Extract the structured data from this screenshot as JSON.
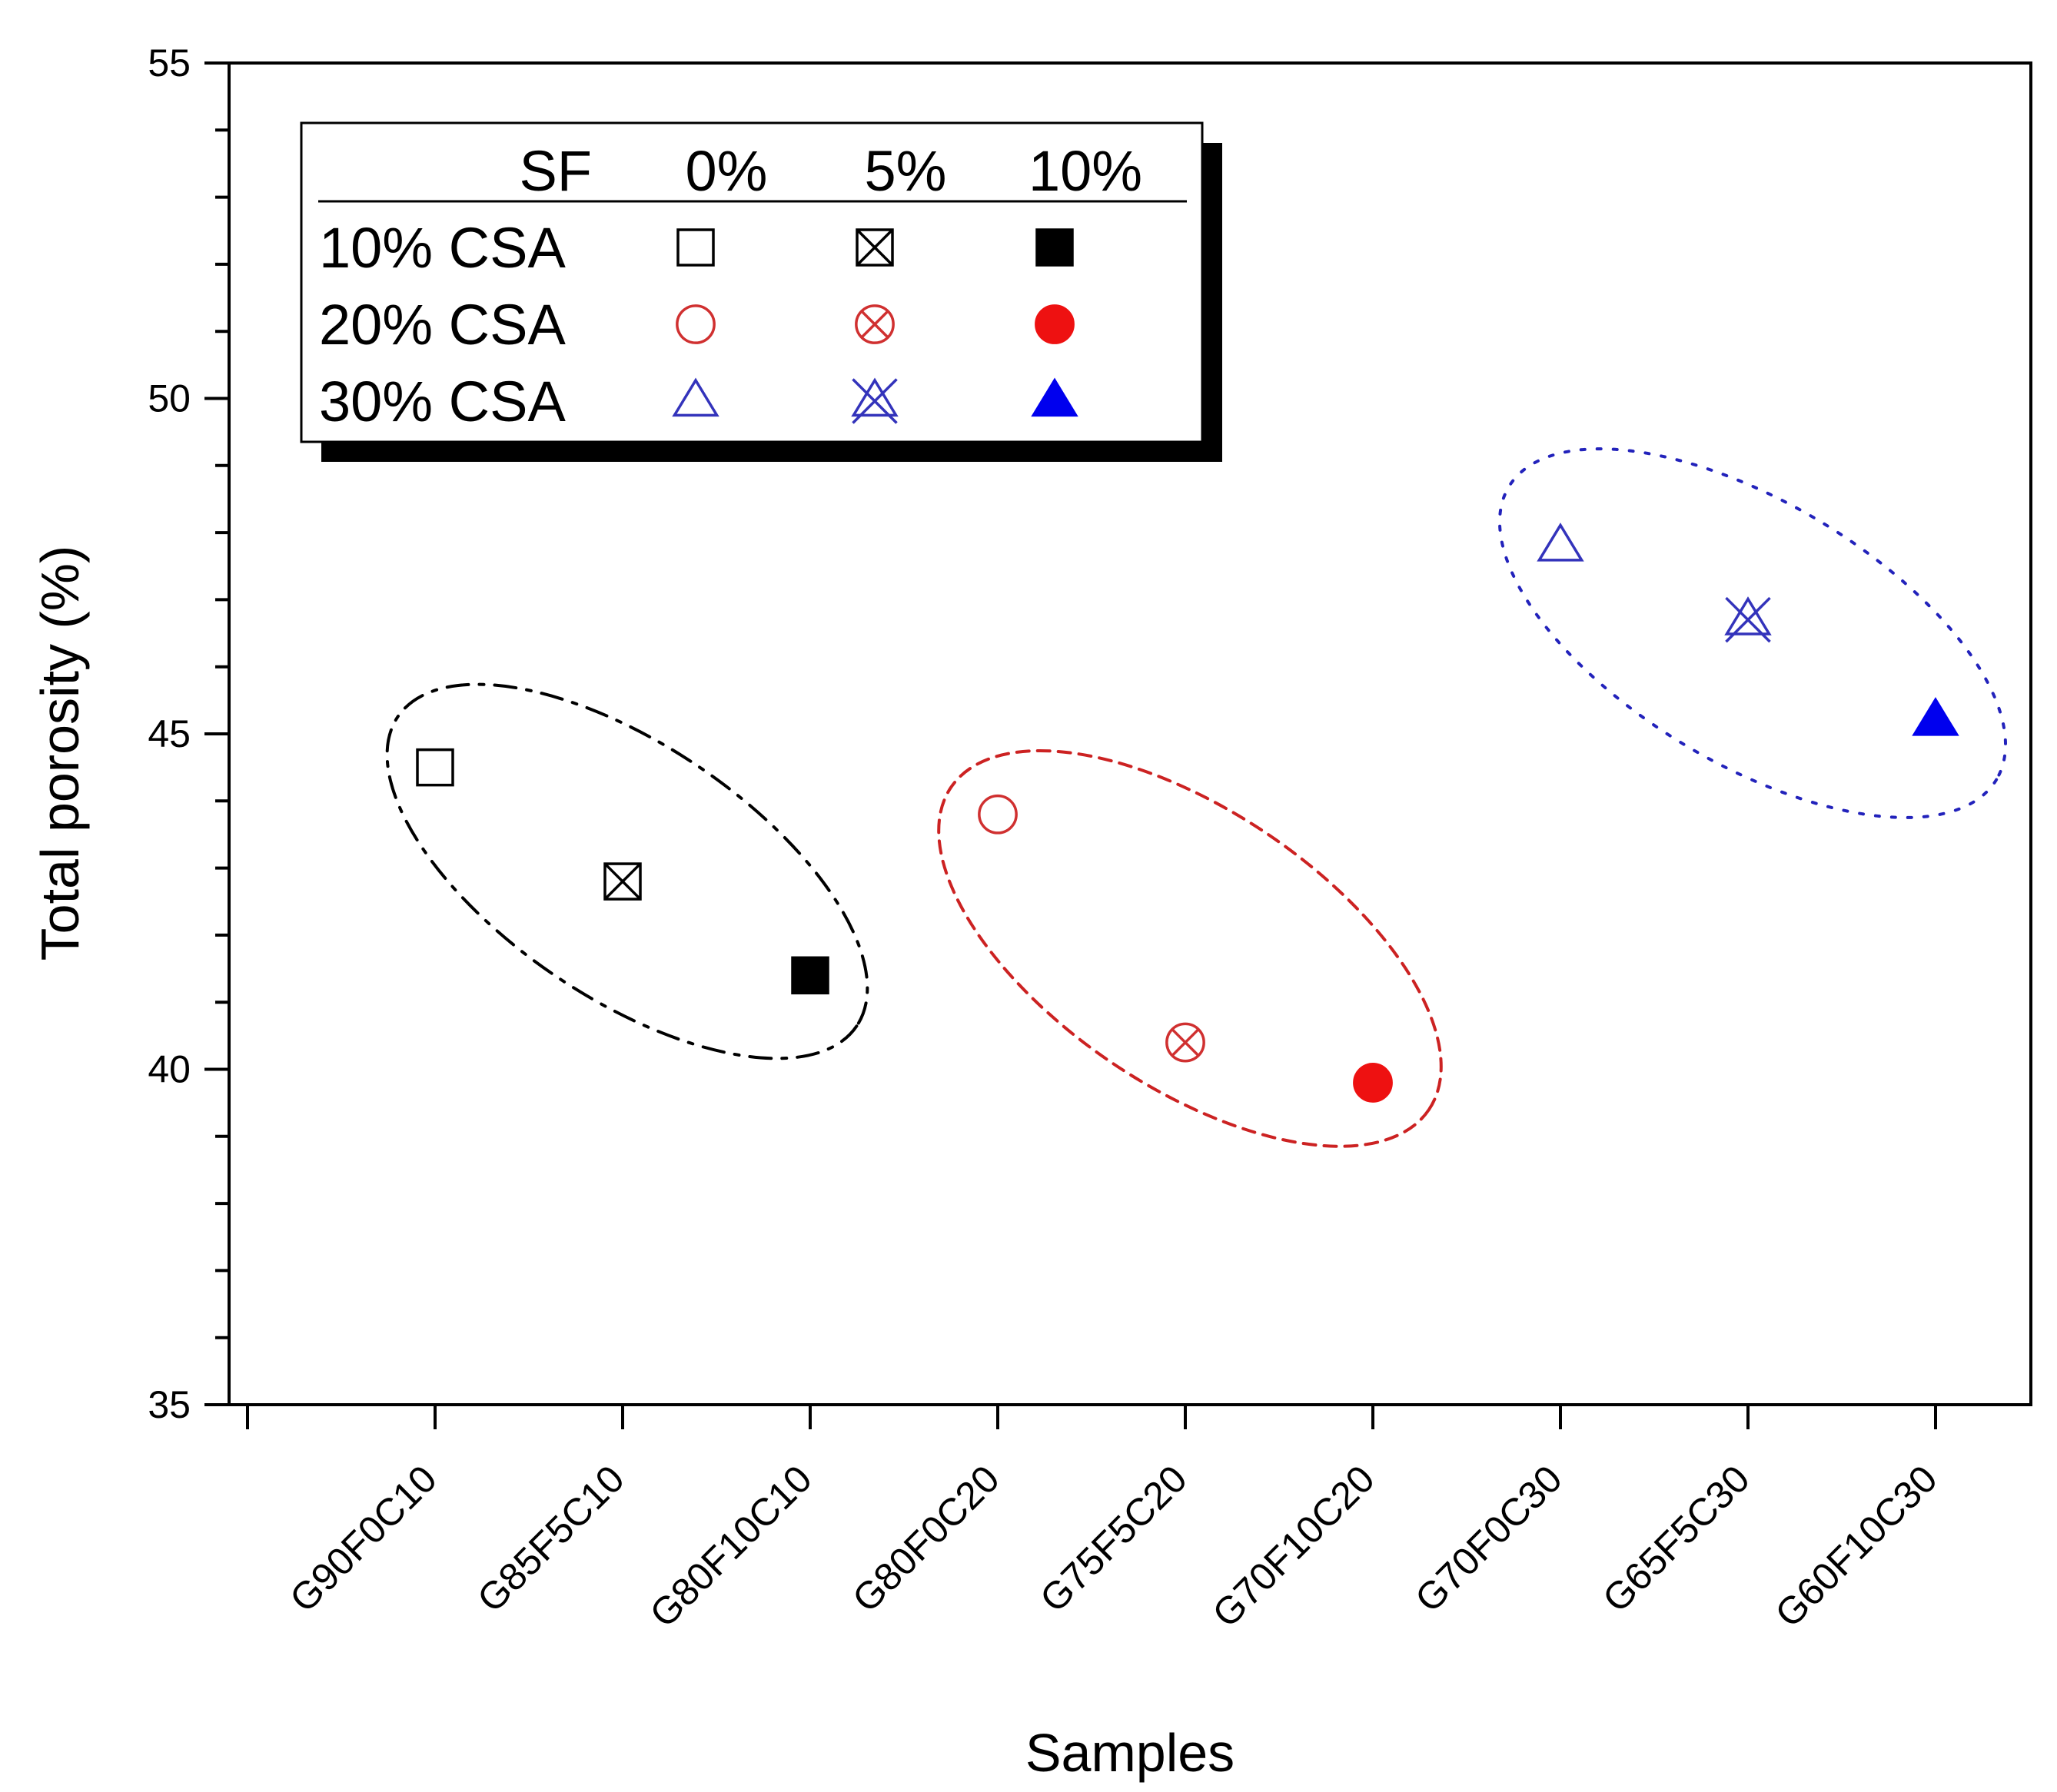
{
  "chart_data": {
    "type": "scatter",
    "title": "",
    "xlabel": "Samples",
    "ylabel": "Total porosity (%)",
    "ylim": [
      35,
      55
    ],
    "yticks": [
      "35",
      "40",
      "45",
      "50",
      "55"
    ],
    "categories": [
      "G90F0C10",
      "G85F5C10",
      "G80F10C10",
      "G80F0C20",
      "G75F5C20",
      "G70F10C20",
      "G70F0C30",
      "G65F5C30",
      "G60F10C30"
    ],
    "series": [
      {
        "sample": "G90F0C10",
        "y": 44.5,
        "csa": "10% CSA",
        "sf": "0%",
        "marker": "square-open",
        "color": "#000000"
      },
      {
        "sample": "G85F5C10",
        "y": 42.8,
        "csa": "10% CSA",
        "sf": "5%",
        "marker": "square-x",
        "color": "#000000"
      },
      {
        "sample": "G80F10C10",
        "y": 41.4,
        "csa": "10% CSA",
        "sf": "10%",
        "marker": "square-filled",
        "color": "#000000"
      },
      {
        "sample": "G80F0C20",
        "y": 43.8,
        "csa": "20% CSA",
        "sf": "0%",
        "marker": "circle-open",
        "color": "#d03030"
      },
      {
        "sample": "G75F5C20",
        "y": 40.4,
        "csa": "20% CSA",
        "sf": "5%",
        "marker": "circle-x",
        "color": "#d03030"
      },
      {
        "sample": "G70F10C20",
        "y": 39.8,
        "csa": "20% CSA",
        "sf": "10%",
        "marker": "circle-filled",
        "color": "#ee1111"
      },
      {
        "sample": "G70F0C30",
        "y": 47.8,
        "csa": "30% CSA",
        "sf": "0%",
        "marker": "triangle-open",
        "color": "#3333bb"
      },
      {
        "sample": "G65F5C30",
        "y": 46.7,
        "csa": "30% CSA",
        "sf": "5%",
        "marker": "triangle-x",
        "color": "#3333bb"
      },
      {
        "sample": "G60F10C30",
        "y": 45.2,
        "csa": "30% CSA",
        "sf": "10%",
        "marker": "triangle-filled",
        "color": "#0000ee"
      }
    ],
    "legend": {
      "position": "top-left",
      "header": [
        "SF",
        "0%",
        "5%",
        "10%"
      ],
      "rows": [
        "10% CSA",
        "20% CSA",
        "30% CSA"
      ]
    },
    "groups": [
      {
        "name": "10% CSA",
        "style": "dash-dot",
        "color": "#000000"
      },
      {
        "name": "20% CSA",
        "style": "dashed",
        "color": "#cc2222"
      },
      {
        "name": "30% CSA",
        "style": "dotted",
        "color": "#2222bb"
      }
    ],
    "grid": false
  }
}
